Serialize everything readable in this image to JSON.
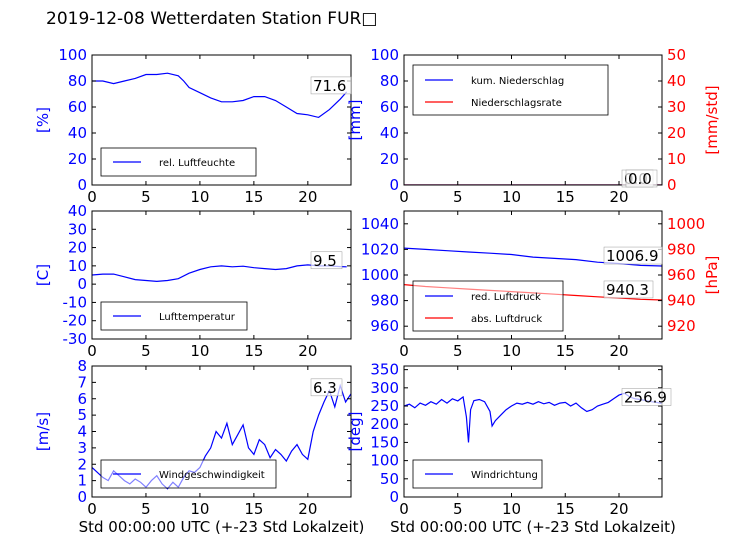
{
  "title": "2019-12-08 Wetterdaten Station FUR□",
  "xlabel": "Std 00:00:00 UTC (+-23 Std Lokalzeit)",
  "colors": {
    "left_axis": "#0000ff",
    "right_axis": "#ff0000",
    "frame": "#000000"
  },
  "chart_data": [
    {
      "type": "line",
      "ylabel": "[%]",
      "xlim": [
        0,
        24
      ],
      "ylim": [
        0,
        100
      ],
      "xticks": [
        0,
        5,
        10,
        15,
        20
      ],
      "yticks": [
        0,
        20,
        40,
        60,
        80,
        100
      ],
      "legend": [
        "rel. Luftfeuchte"
      ],
      "legend_loc": "lower-left",
      "annotation": "71.6",
      "series": [
        {
          "name": "rel. Luftfeuchte",
          "color": "#0000ff",
          "x": [
            0,
            1,
            2,
            3,
            4,
            5,
            6,
            7,
            8,
            8.5,
            9,
            10,
            11,
            12,
            13,
            14,
            15,
            16,
            17,
            18,
            19,
            20,
            21,
            22,
            23,
            23.6
          ],
          "y": [
            80,
            80,
            78,
            80,
            82,
            85,
            85,
            86,
            84,
            80,
            75,
            71,
            67,
            64,
            64,
            65,
            68,
            68,
            65,
            60,
            55,
            54,
            52,
            58,
            66,
            71.6
          ]
        }
      ]
    },
    {
      "type": "line",
      "ylabel": "[mm]",
      "ylabel_right": "[mm/std]",
      "xlim": [
        0,
        24
      ],
      "ylim": [
        0,
        100
      ],
      "ylim_right": [
        0,
        50
      ],
      "xticks": [
        0,
        5,
        10,
        15,
        20
      ],
      "yticks": [
        0,
        20,
        40,
        60,
        80,
        100
      ],
      "yticks_right": [
        0,
        10,
        20,
        30,
        40,
        50
      ],
      "legend": [
        "kum. Niederschlag",
        "Niederschlagsrate"
      ],
      "legend_loc": "upper-left",
      "annotations": [
        "0.0",
        "0.0"
      ],
      "series": [
        {
          "name": "kum. Niederschlag",
          "color": "#0000ff",
          "axis": "left",
          "x": [
            0,
            24
          ],
          "y": [
            0,
            0
          ]
        },
        {
          "name": "Niederschlagsrate",
          "color": "#ff0000",
          "axis": "right",
          "x": [
            0,
            24
          ],
          "y": [
            0,
            0
          ]
        }
      ]
    },
    {
      "type": "line",
      "ylabel": "[C]",
      "xlim": [
        0,
        24
      ],
      "ylim": [
        -30,
        40
      ],
      "xticks": [
        0,
        5,
        10,
        15,
        20
      ],
      "yticks": [
        -30,
        -20,
        -10,
        0,
        10,
        20,
        30,
        40
      ],
      "legend": [
        "Lufttemperatur"
      ],
      "legend_loc": "lower-left",
      "annotation": "9.5",
      "series": [
        {
          "name": "Lufttemperatur",
          "color": "#0000ff",
          "x": [
            0,
            1,
            2,
            3,
            4,
            5,
            6,
            7,
            8,
            9,
            10,
            11,
            12,
            13,
            14,
            15,
            16,
            17,
            18,
            19,
            20,
            21,
            22,
            23,
            23.6
          ],
          "y": [
            5,
            5.5,
            5.5,
            4,
            2.5,
            2,
            1.5,
            2,
            3,
            6,
            8,
            9.5,
            10,
            9.5,
            9.8,
            9,
            8.5,
            8,
            8.5,
            10,
            10.5,
            10,
            10,
            9.6,
            9.5
          ]
        }
      ]
    },
    {
      "type": "line",
      "ylabel_right": "[hPa]",
      "xlim": [
        0,
        24
      ],
      "ylim": [
        950,
        1050
      ],
      "ylim_right": [
        910,
        1010
      ],
      "xticks": [
        0,
        5,
        10,
        15,
        20
      ],
      "yticks": [
        960,
        980,
        1000,
        1020,
        1040
      ],
      "yticks_right": [
        920,
        940,
        960,
        980,
        1000
      ],
      "legend": [
        "red. Luftdruck",
        "abs. Luftdruck"
      ],
      "legend_loc": "lower-left",
      "annotations": [
        "1006.9",
        "940.3"
      ],
      "series": [
        {
          "name": "red. Luftdruck",
          "color": "#0000ff",
          "axis": "left",
          "x": [
            0,
            2,
            4,
            6,
            8,
            10,
            12,
            14,
            16,
            18,
            20,
            22,
            24
          ],
          "y": [
            1021,
            1020,
            1019,
            1018,
            1017,
            1016,
            1014,
            1013,
            1012,
            1010,
            1009,
            1007.5,
            1007
          ]
        },
        {
          "name": "abs. Luftdruck",
          "color": "#ff0000",
          "axis": "right",
          "x": [
            0,
            2,
            4,
            6,
            8,
            10,
            12,
            14,
            16,
            18,
            20,
            22,
            24
          ],
          "y": [
            952.5,
            951,
            950,
            949,
            948,
            947,
            946,
            945,
            944,
            943,
            942,
            941,
            940.5
          ]
        }
      ]
    },
    {
      "type": "line",
      "ylabel": "[m/s]",
      "xlabel": "Std 00:00:00 UTC (+-23 Std Lokalzeit)",
      "xlim": [
        0,
        24
      ],
      "ylim": [
        0,
        8
      ],
      "xticks": [
        0,
        5,
        10,
        15,
        20
      ],
      "yticks": [
        0,
        1,
        2,
        3,
        4,
        5,
        6,
        7,
        8
      ],
      "legend": [
        "Windgeschwindigkeit"
      ],
      "legend_loc": "lower-left",
      "annotation": "6.3",
      "series": [
        {
          "name": "Windgeschwindigkeit",
          "color": "#0000ff",
          "x": [
            0,
            0.5,
            1,
            1.5,
            2,
            2.5,
            3,
            3.5,
            4,
            4.5,
            5,
            5.5,
            6,
            6.5,
            7,
            7.5,
            8,
            8.5,
            9,
            9.5,
            10,
            10.5,
            11,
            11.5,
            12,
            12.5,
            13,
            13.5,
            14,
            14.5,
            15,
            15.5,
            16,
            16.5,
            17,
            17.5,
            18,
            18.5,
            19,
            19.5,
            20,
            20.5,
            21,
            21.5,
            22,
            22.5,
            23,
            23.5,
            24
          ],
          "y": [
            1.8,
            1.5,
            1.2,
            1.0,
            1.6,
            1.3,
            1.0,
            0.8,
            1.1,
            0.9,
            0.6,
            1.0,
            1.3,
            0.8,
            0.5,
            0.9,
            0.6,
            1.2,
            1.6,
            1.5,
            1.8,
            2.5,
            3.0,
            4.0,
            3.6,
            4.5,
            3.2,
            3.8,
            4.4,
            3.0,
            2.6,
            3.5,
            3.2,
            2.4,
            2.9,
            2.6,
            2.2,
            2.8,
            3.2,
            2.6,
            2.3,
            4.0,
            5.0,
            5.8,
            6.5,
            5.5,
            6.8,
            5.8,
            6.3
          ]
        }
      ]
    },
    {
      "type": "line",
      "ylabel": "[deg]",
      "xlabel": "Std 00:00:00 UTC (+-23 Std Lokalzeit)",
      "xlim": [
        0,
        24
      ],
      "ylim": [
        0,
        360
      ],
      "xticks": [
        0,
        5,
        10,
        15,
        20
      ],
      "yticks": [
        0,
        50,
        100,
        150,
        200,
        250,
        300,
        350
      ],
      "legend": [
        "Windrichtung"
      ],
      "legend_loc": "lower-left",
      "annotation": "256.9",
      "series": [
        {
          "name": "Windrichtung",
          "color": "#0000ff",
          "x": [
            0,
            0.5,
            1,
            1.5,
            2,
            2.5,
            3,
            3.5,
            4,
            4.5,
            5,
            5.5,
            5.8,
            6,
            6.2,
            6.5,
            7,
            7.5,
            8,
            8.2,
            8.5,
            9,
            9.5,
            10,
            10.5,
            11,
            11.5,
            12,
            12.5,
            13,
            13.5,
            14,
            14.5,
            15,
            15.5,
            16,
            16.5,
            17,
            17.5,
            18,
            18.5,
            19,
            19.5,
            20,
            20.5,
            21,
            21.5,
            22,
            22.5,
            23,
            23.5,
            24
          ],
          "y": [
            250,
            255,
            245,
            258,
            252,
            262,
            255,
            268,
            258,
            270,
            264,
            275,
            220,
            150,
            240,
            265,
            268,
            262,
            235,
            195,
            210,
            225,
            240,
            250,
            258,
            255,
            260,
            255,
            262,
            256,
            260,
            252,
            258,
            260,
            250,
            258,
            245,
            235,
            240,
            250,
            255,
            260,
            270,
            280,
            285,
            275,
            270,
            268,
            265,
            262,
            260,
            257
          ]
        }
      ]
    }
  ]
}
